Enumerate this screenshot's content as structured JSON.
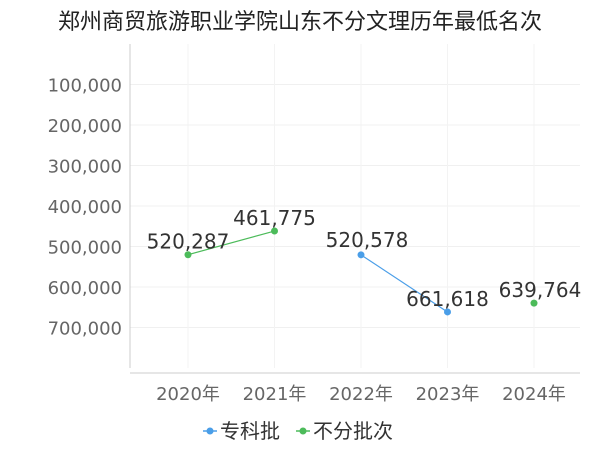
{
  "chart_data": {
    "type": "line",
    "title": "郑州商贸旅游职业学院山东不分文理历年最低名次",
    "categories": [
      "2020年",
      "2021年",
      "2022年",
      "2023年",
      "2024年"
    ],
    "y_ticks": [
      "100,000",
      "200,000",
      "300,000",
      "400,000",
      "500,000",
      "600,000",
      "700,000"
    ],
    "ylim": [
      0,
      800000
    ],
    "y_reversed": true,
    "grid": true,
    "legend_position": "bottom",
    "series": [
      {
        "name": "专科批",
        "color": "#4a9ee8",
        "points": [
          {
            "category": "2022年",
            "value": 520578,
            "label": "520,578"
          },
          {
            "category": "2023年",
            "value": 661618,
            "label": "661,618"
          }
        ]
      },
      {
        "name": "不分批次",
        "color": "#4cbb5a",
        "points": [
          {
            "category": "2020年",
            "value": 520287,
            "label": "520,287"
          },
          {
            "category": "2021年",
            "value": 461775,
            "label": "461,775"
          },
          {
            "category": "2024年",
            "value": 639764,
            "label": "639,764"
          }
        ],
        "segments": [
          [
            "2020年",
            "2021年"
          ]
        ]
      }
    ]
  }
}
